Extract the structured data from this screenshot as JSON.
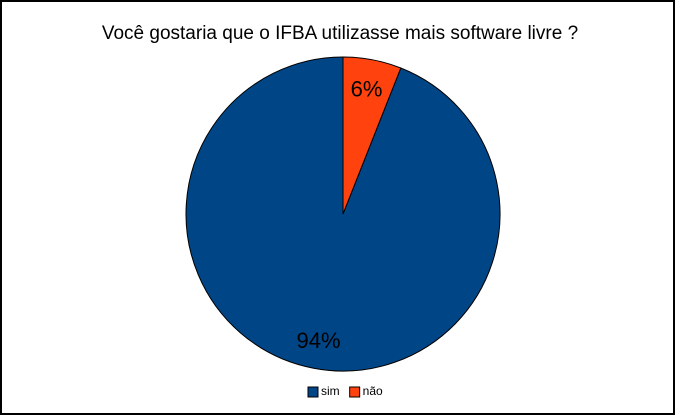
{
  "chart_data": {
    "type": "pie",
    "title": "Você gostaria que o IFBA utilizasse mais software livre ?",
    "categories": [
      "sim",
      "não"
    ],
    "values": [
      94,
      6
    ],
    "value_labels": [
      "94%",
      "6%"
    ],
    "colors": [
      "#004586",
      "#ff420e"
    ],
    "legend": "bottom"
  }
}
